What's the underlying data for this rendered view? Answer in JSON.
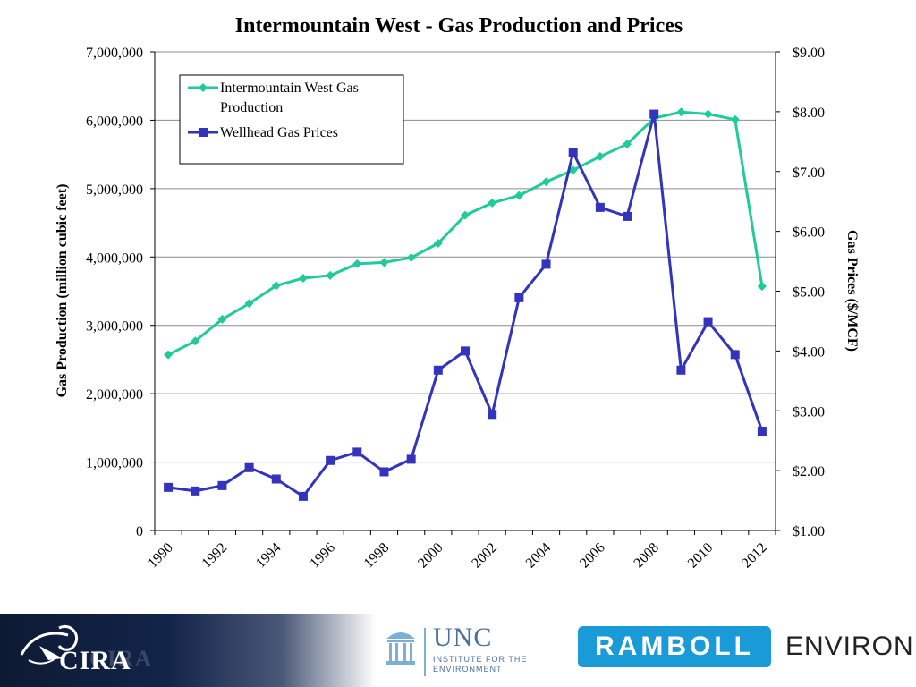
{
  "chart_data": {
    "type": "line",
    "title": "Intermountain West - Gas Production and Prices",
    "ylabel_left": "Gas Production (million cubic feet)",
    "ylabel_right": "Gas Prices ($/MCF)",
    "x": [
      1990,
      1991,
      1992,
      1993,
      1994,
      1995,
      1996,
      1997,
      1998,
      1999,
      2000,
      2001,
      2002,
      2003,
      2004,
      2005,
      2006,
      2007,
      2008,
      2009,
      2010,
      2011,
      2012
    ],
    "x_tick_labels": [
      "1990",
      "1992",
      "1994",
      "1996",
      "1998",
      "2000",
      "2002",
      "2004",
      "2006",
      "2008",
      "2010",
      "2012"
    ],
    "y_left": {
      "ylim": [
        0,
        7000000
      ],
      "tick_labels": [
        "0",
        "1,000,000",
        "2,000,000",
        "3,000,000",
        "4,000,000",
        "5,000,000",
        "6,000,000",
        "7,000,000"
      ]
    },
    "y_right": {
      "ylim": [
        1,
        9
      ],
      "tick_labels": [
        "$1.00",
        "$2.00",
        "$3.00",
        "$4.00",
        "$5.00",
        "$6.00",
        "$7.00",
        "$8.00",
        "$9.00"
      ]
    },
    "grid": "horizontal",
    "legend_position": "top-left",
    "series": [
      {
        "name": "Intermountain West Gas Production",
        "axis": "left",
        "color": "#1fcc99",
        "marker": "diamond",
        "values": [
          2570000,
          2770000,
          3090000,
          3320000,
          3580000,
          3690000,
          3730000,
          3900000,
          3920000,
          3990000,
          4200000,
          4610000,
          4790000,
          4900000,
          5100000,
          5270000,
          5470000,
          5650000,
          6030000,
          6120000,
          6090000,
          6010000,
          3570000
        ]
      },
      {
        "name": "Wellhead Gas Prices",
        "axis": "right",
        "color": "#3333bb",
        "marker": "square",
        "values": [
          1.72,
          1.66,
          1.75,
          2.05,
          1.86,
          1.57,
          2.17,
          2.31,
          1.98,
          2.19,
          3.68,
          4.0,
          2.94,
          4.89,
          5.45,
          7.32,
          6.4,
          6.25,
          7.96,
          3.68,
          4.49,
          3.94,
          2.66
        ]
      }
    ]
  },
  "footer": {
    "cira": "CIRA",
    "unc_name": "UNC",
    "unc_sub": "INSTITUTE FOR THE ENVIRONMENT",
    "ramboll": "RAMBOLL",
    "environ": "ENVIRON"
  }
}
